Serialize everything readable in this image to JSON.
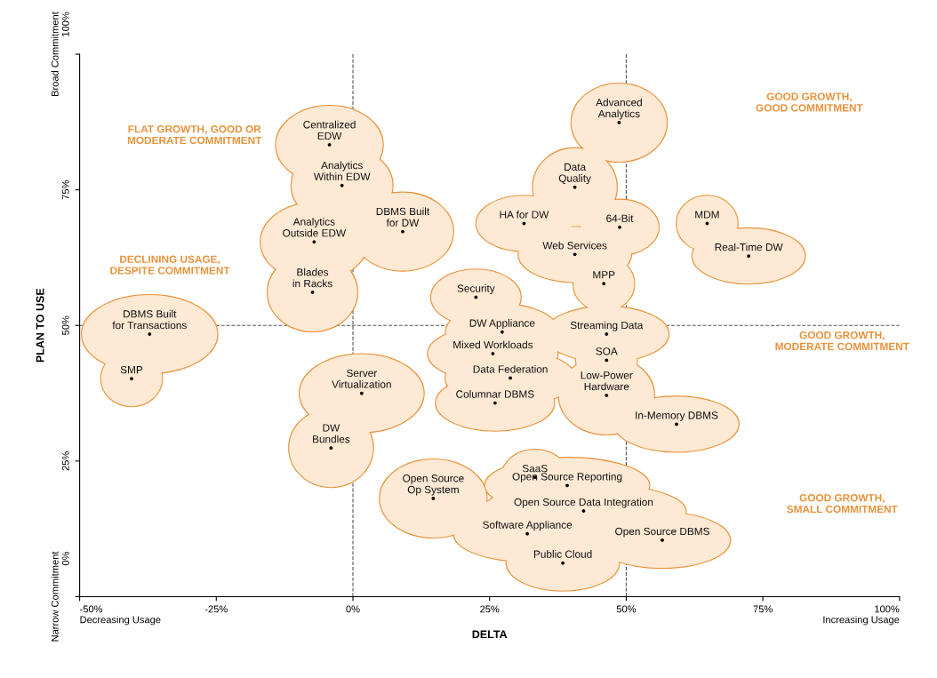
{
  "chart_data": {
    "type": "scatter",
    "xlabel": "DELTA",
    "ylabel": "PLAN TO USE",
    "xlim": [
      -50,
      100
    ],
    "ylim": [
      0,
      100
    ],
    "xticks": [
      {
        "value": -50,
        "label": "-50%\nDecreasing Usage"
      },
      {
        "value": -25,
        "label": "-25%"
      },
      {
        "value": 0,
        "label": "0%"
      },
      {
        "value": 25,
        "label": "25%"
      },
      {
        "value": 50,
        "label": "50%"
      },
      {
        "value": 75,
        "label": "75%"
      },
      {
        "value": 100,
        "label": "100%\nIncreasing Usage"
      }
    ],
    "yticks": [
      {
        "value": 0,
        "label": "Narrow Commitment\n0%"
      },
      {
        "value": 25,
        "label": "25%"
      },
      {
        "value": 50,
        "label": "50%"
      },
      {
        "value": 75,
        "label": "75%"
      },
      {
        "value": 100,
        "label": "Broad Commitment\n100%"
      }
    ],
    "grid": false,
    "marker": "circle",
    "series": [
      {
        "color": "#000000",
        "x": [
          -4.3,
          -2.0,
          9.1,
          -7.1,
          -7.4,
          1.6,
          -4.0,
          -37.2,
          -40.5,
          48.7,
          40.6,
          31.3,
          48.8,
          64.8,
          40.6,
          72.4,
          45.9,
          22.5,
          27.3,
          46.4,
          25.6,
          46.4,
          28.8,
          46.4,
          26.0,
          59.2,
          33.3,
          14.7,
          39.2,
          42.2,
          31.9,
          56.6,
          38.4
        ],
        "values": [
          83.3,
          75.8,
          67.3,
          65.4,
          56.1,
          37.5,
          27.4,
          48.4,
          40.2,
          87.4,
          75.5,
          68.8,
          68.1,
          68.8,
          63.1,
          62.8,
          57.7,
          55.2,
          48.8,
          48.4,
          44.8,
          43.6,
          40.3,
          37.1,
          35.7,
          31.8,
          22.0,
          18.1,
          20.5,
          15.8,
          11.6,
          10.4,
          6.2
        ]
      }
    ],
    "ref_lines": [
      {
        "axis": "x",
        "value": 0,
        "color": "#555555",
        "line_style": "dashed"
      },
      {
        "axis": "x",
        "value": 50,
        "color": "#555555",
        "line_style": "dashed"
      },
      {
        "axis": "y",
        "value": 50,
        "color": "#555555",
        "line_style": "dashed"
      }
    ],
    "annotations": [
      {
        "text": "Centralized\nEDW",
        "x": -4.3,
        "y": 83.3
      },
      {
        "text": "Analytics\nWithin EDW",
        "x": -2.0,
        "y": 75.8
      },
      {
        "text": "DBMS Built\nfor DW",
        "x": 9.1,
        "y": 67.3
      },
      {
        "text": "Analytics\nOutside EDW",
        "x": -7.1,
        "y": 65.4
      },
      {
        "text": "Blades\nin Racks",
        "x": -7.4,
        "y": 56.1
      },
      {
        "text": "Server\nVirtualization",
        "x": 1.6,
        "y": 37.5
      },
      {
        "text": "DW\nBundles",
        "x": -4.0,
        "y": 27.4
      },
      {
        "text": "DBMS Built\nfor Transactions",
        "x": -37.2,
        "y": 48.4
      },
      {
        "text": "SMP",
        "x": -40.5,
        "y": 40.2
      },
      {
        "text": "Advanced\nAnalytics",
        "x": 48.7,
        "y": 87.4
      },
      {
        "text": "Data\nQuality",
        "x": 40.6,
        "y": 75.5
      },
      {
        "text": "HA for DW",
        "x": 31.3,
        "y": 68.8
      },
      {
        "text": "64-Bit",
        "x": 48.8,
        "y": 68.1
      },
      {
        "text": "MDM",
        "x": 64.8,
        "y": 68.8
      },
      {
        "text": "Web Services",
        "x": 40.6,
        "y": 63.1
      },
      {
        "text": "Real-Time DW",
        "x": 72.4,
        "y": 62.8
      },
      {
        "text": "MPP",
        "x": 45.9,
        "y": 57.7
      },
      {
        "text": "Security",
        "x": 22.5,
        "y": 55.2
      },
      {
        "text": "DW Appliance",
        "x": 27.3,
        "y": 48.8
      },
      {
        "text": "Streaming Data",
        "x": 46.4,
        "y": 48.4
      },
      {
        "text": "Mixed Workloads",
        "x": 25.6,
        "y": 44.8
      },
      {
        "text": "SOA",
        "x": 46.4,
        "y": 43.6
      },
      {
        "text": "Data Federation",
        "x": 28.8,
        "y": 40.3
      },
      {
        "text": "Low-Power\nHardware",
        "x": 46.4,
        "y": 37.1
      },
      {
        "text": "Columnar DBMS",
        "x": 26.0,
        "y": 35.7
      },
      {
        "text": "In-Memory DBMS",
        "x": 59.2,
        "y": 31.8
      },
      {
        "text": "SaaS",
        "x": 33.3,
        "y": 22.0
      },
      {
        "text": "Open Source\nOp System",
        "x": 14.7,
        "y": 18.1
      },
      {
        "text": "Open Source Reporting",
        "x": 39.2,
        "y": 20.5
      },
      {
        "text": "Open Source Data Integration",
        "x": 42.2,
        "y": 15.8
      },
      {
        "text": "Software Appliance",
        "x": 31.9,
        "y": 11.6
      },
      {
        "text": "Open Source DBMS",
        "x": 56.6,
        "y": 10.4
      },
      {
        "text": "Public Cloud",
        "x": 38.4,
        "y": 6.2
      },
      "FLAT GROWTH, GOOD OR\nMODERATE COMMITMENT",
      "DECLINING USAGE,\nDESPITE COMMITMENT",
      "GOOD GROWTH,\nGOOD COMMITMENT",
      "GOOD GROWTH,\nMODERATE COMMITMENT",
      "GOOD GROWTH,\nSMALL COMMITMENT"
    ]
  }
}
